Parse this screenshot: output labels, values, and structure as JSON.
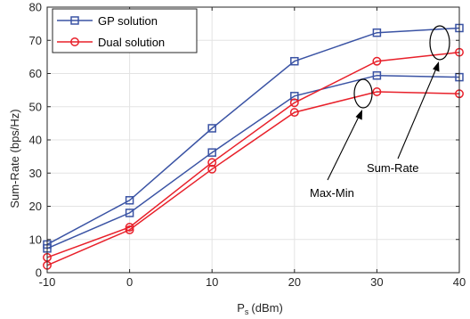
{
  "chart_data": {
    "type": "line",
    "x": [
      -10,
      0,
      10,
      20,
      30,
      40
    ],
    "xlim": [
      -10,
      40
    ],
    "ylim": [
      0,
      80
    ],
    "xticks": [
      "-10",
      "0",
      "10",
      "20",
      "30",
      "40"
    ],
    "yticks": [
      "0",
      "10",
      "20",
      "30",
      "40",
      "50",
      "60",
      "70",
      "80"
    ],
    "xlabel_main": "P",
    "xlabel_sub": "s",
    "xlabel_unit": "(dBm)",
    "ylabel": "Sum-Rate (bps/Hz)",
    "grid": true,
    "legend_position": "top-left",
    "legend": [
      {
        "label": "GP solution",
        "color": "#3a53a4",
        "marker": "square"
      },
      {
        "label": "Dual solution",
        "color": "#e8202a",
        "marker": "circle"
      }
    ],
    "series": [
      {
        "legend": "GP solution",
        "group": "Sum-Rate",
        "color": "#3a53a4",
        "marker": "square",
        "values": [
          8.5,
          21.8,
          43.5,
          63.7,
          72.3,
          73.7
        ]
      },
      {
        "legend": "GP solution",
        "group": "Max-Min",
        "color": "#3a53a4",
        "marker": "square",
        "values": [
          7.3,
          18.0,
          36.2,
          53.2,
          59.4,
          58.9
        ]
      },
      {
        "legend": "Dual solution",
        "group": "Sum-Rate",
        "color": "#e8202a",
        "marker": "circle",
        "values": [
          4.6,
          13.7,
          33.2,
          51.2,
          63.7,
          66.4
        ]
      },
      {
        "legend": "Dual solution",
        "group": "Max-Min",
        "color": "#e8202a",
        "marker": "circle",
        "values": [
          2.2,
          12.9,
          31.2,
          48.3,
          54.5,
          53.9
        ]
      }
    ],
    "annotations": [
      {
        "text": "Sum-Rate",
        "target_x": 38.5,
        "target_y": 68.5
      },
      {
        "text": "Max-Min",
        "target_x": 28.2,
        "target_y": 56.0
      }
    ]
  }
}
